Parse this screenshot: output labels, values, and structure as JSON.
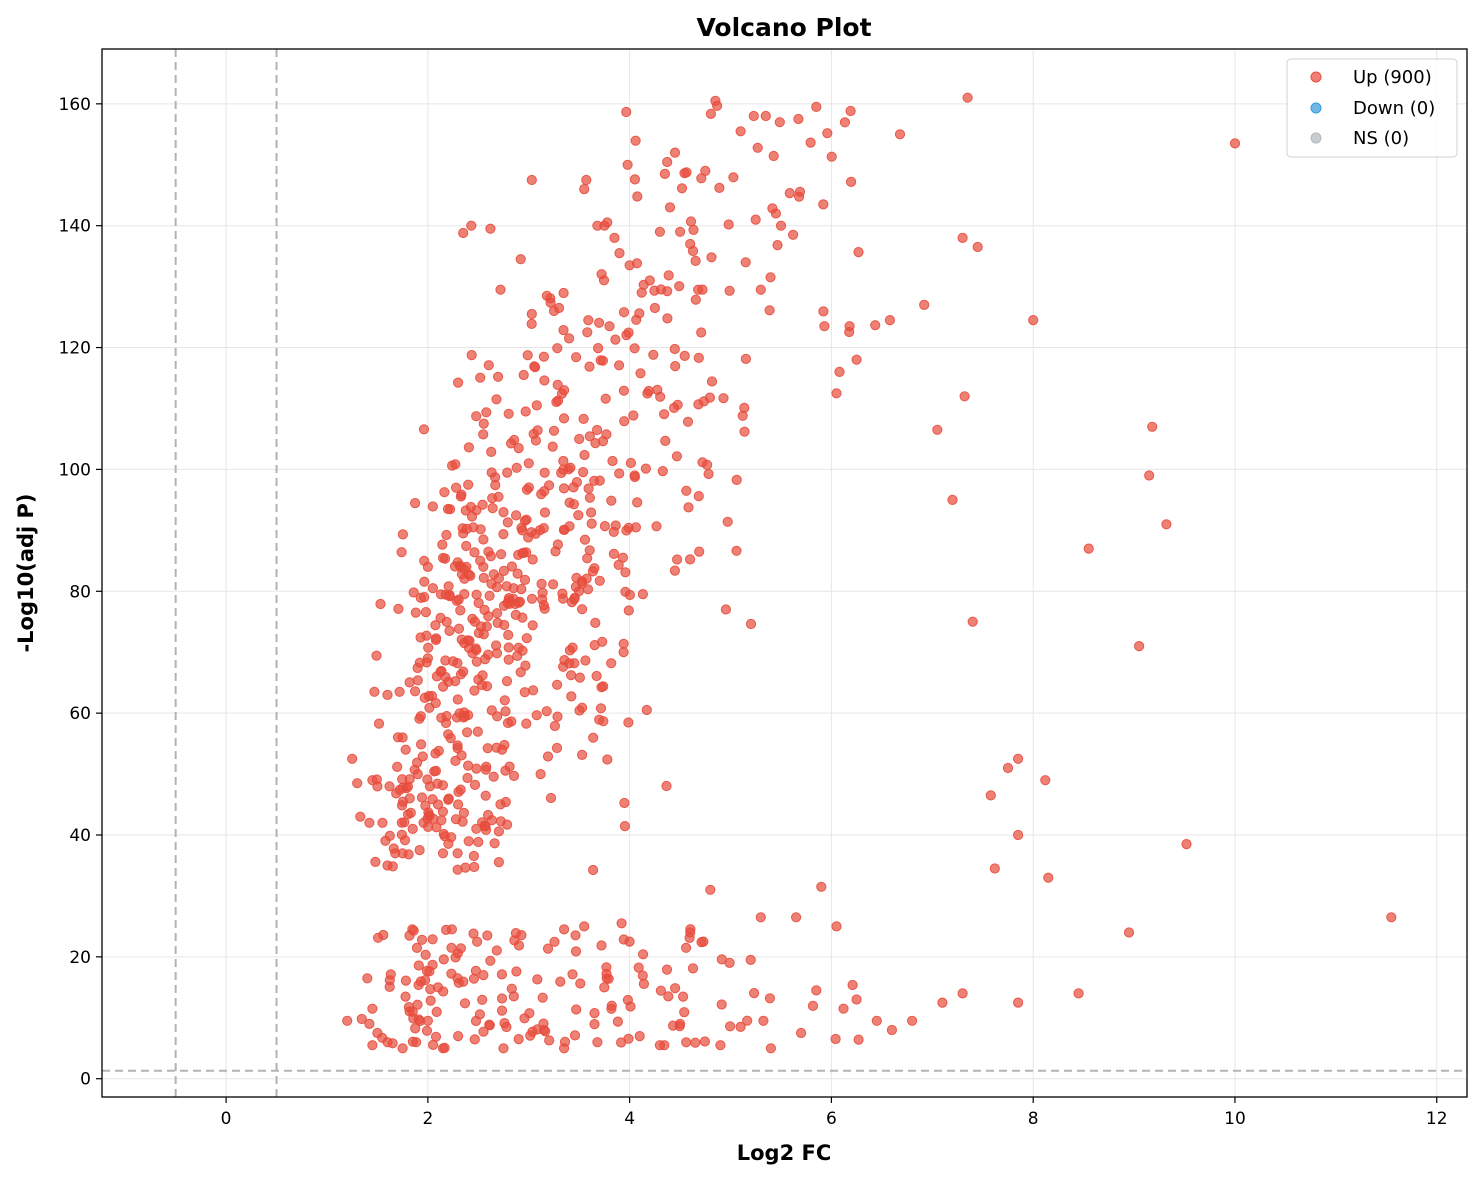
{
  "chart_data": {
    "type": "scatter",
    "title": "Volcano Plot",
    "xlabel": "Log2 FC",
    "ylabel": "-Log10(adj P)",
    "xlim": [
      -1.23,
      12.3
    ],
    "ylim": [
      -3.0,
      169.0
    ],
    "xticks": [
      0,
      2,
      4,
      6,
      8,
      10,
      12
    ],
    "yticks": [
      0,
      20,
      40,
      60,
      80,
      100,
      120,
      140,
      160
    ],
    "grid": true,
    "legend_position": "top-right",
    "thresholds": {
      "fc_lines": [
        -0.5,
        0.5
      ],
      "p_line": 1.3
    },
    "series": [
      {
        "name": "Up (900)",
        "color": "#e74c3c",
        "points": []
      },
      {
        "name": "Down (0)",
        "color": "#3498db",
        "points": []
      },
      {
        "name": "NS (0)",
        "color": "#b0b8bc",
        "points": []
      }
    ],
    "point_count_total": 900,
    "sample_points": [
      [
        1.2,
        9.5
      ],
      [
        1.25,
        52.5
      ],
      [
        1.3,
        48.5
      ],
      [
        1.33,
        43.0
      ],
      [
        1.42,
        42.0
      ],
      [
        1.45,
        49.0
      ],
      [
        1.47,
        63.5
      ],
      [
        1.45,
        5.5
      ],
      [
        1.45,
        11.5
      ],
      [
        1.55,
        42.0
      ],
      [
        1.6,
        35.0
      ],
      [
        1.62,
        48.0
      ],
      [
        1.6,
        63.0
      ],
      [
        1.72,
        63.5
      ],
      [
        1.75,
        37.0
      ],
      [
        1.75,
        56.0
      ],
      [
        1.78,
        54.0
      ],
      [
        1.82,
        46.0
      ],
      [
        1.85,
        41.0
      ],
      [
        1.88,
        76.5
      ],
      [
        1.9,
        50.0
      ],
      [
        1.93,
        59.5
      ],
      [
        1.97,
        62.5
      ],
      [
        2.0,
        69.0
      ],
      [
        2.0,
        84.0
      ],
      [
        2.02,
        48.0
      ],
      [
        2.05,
        80.5
      ],
      [
        2.08,
        72.0
      ],
      [
        2.1,
        45.0
      ],
      [
        2.13,
        79.5
      ],
      [
        2.15,
        37.0
      ],
      [
        2.2,
        93.5
      ],
      [
        2.25,
        68.5
      ],
      [
        2.28,
        97.0
      ],
      [
        2.3,
        45.0
      ],
      [
        2.33,
        84.0
      ],
      [
        2.35,
        89.5
      ],
      [
        2.4,
        97.5
      ],
      [
        2.45,
        90.5
      ],
      [
        2.5,
        65.5
      ],
      [
        2.55,
        88.5
      ],
      [
        2.6,
        86.5
      ],
      [
        2.62,
        139.5
      ],
      [
        2.68,
        111.5
      ],
      [
        2.7,
        95.5
      ],
      [
        2.72,
        129.5
      ],
      [
        2.75,
        93.0
      ],
      [
        2.8,
        78.5
      ],
      [
        2.85,
        80.5
      ],
      [
        2.9,
        103.5
      ],
      [
        2.92,
        134.5
      ],
      [
        2.95,
        115.5
      ],
      [
        3.0,
        101.0
      ],
      [
        3.03,
        147.5
      ],
      [
        3.03,
        125.5
      ],
      [
        3.08,
        110.5
      ],
      [
        3.15,
        118.5
      ],
      [
        3.18,
        128.5
      ],
      [
        3.25,
        126.0
      ],
      [
        3.3,
        126.5
      ],
      [
        3.35,
        113.0
      ],
      [
        3.4,
        121.5
      ],
      [
        3.5,
        105.0
      ],
      [
        3.55,
        146.0
      ],
      [
        3.57,
        147.5
      ],
      [
        3.58,
        122.5
      ],
      [
        3.68,
        140.0
      ],
      [
        3.75,
        140.0
      ],
      [
        3.8,
        123.5
      ],
      [
        3.85,
        138.0
      ],
      [
        3.9,
        135.5
      ],
      [
        3.98,
        150.0
      ],
      [
        4.0,
        133.5
      ],
      [
        4.05,
        99.0
      ],
      [
        4.12,
        129.0
      ],
      [
        4.2,
        131.0
      ],
      [
        4.25,
        126.5
      ],
      [
        4.3,
        139.0
      ],
      [
        4.35,
        148.5
      ],
      [
        4.4,
        143.0
      ],
      [
        4.45,
        152.0
      ],
      [
        4.5,
        139.0
      ],
      [
        4.6,
        137.0
      ],
      [
        4.68,
        129.5
      ],
      [
        4.75,
        149.0
      ],
      [
        4.85,
        160.5
      ],
      [
        5.1,
        155.5
      ],
      [
        5.15,
        134.0
      ],
      [
        5.25,
        141.0
      ],
      [
        5.3,
        129.5
      ],
      [
        5.35,
        158.0
      ],
      [
        5.45,
        142.0
      ],
      [
        5.5,
        140.0
      ],
      [
        5.62,
        138.5
      ],
      [
        5.85,
        159.5
      ],
      [
        5.92,
        143.5
      ],
      [
        5.93,
        123.5
      ],
      [
        6.05,
        112.5
      ],
      [
        6.18,
        123.5
      ],
      [
        6.25,
        118.0
      ],
      [
        6.58,
        124.5
      ],
      [
        6.68,
        155.0
      ],
      [
        6.92,
        127.0
      ],
      [
        7.05,
        106.5
      ],
      [
        7.2,
        95.0
      ],
      [
        7.3,
        138.0
      ],
      [
        7.32,
        112.0
      ],
      [
        7.35,
        161.0
      ],
      [
        7.45,
        136.5
      ],
      [
        7.4,
        75.0
      ],
      [
        8.0,
        124.5
      ],
      [
        8.55,
        87.0
      ],
      [
        9.05,
        71.0
      ],
      [
        9.15,
        99.0
      ],
      [
        9.18,
        107.0
      ],
      [
        9.32,
        91.0
      ],
      [
        9.52,
        38.5
      ],
      [
        10.0,
        153.5
      ],
      [
        11.55,
        26.5
      ],
      [
        8.95,
        24.0
      ],
      [
        8.45,
        14.0
      ],
      [
        7.85,
        12.5
      ],
      [
        8.15,
        33.0
      ],
      [
        8.12,
        49.0
      ],
      [
        7.85,
        52.5
      ],
      [
        7.75,
        51.0
      ],
      [
        7.85,
        40.0
      ],
      [
        7.62,
        34.5
      ],
      [
        7.58,
        46.5
      ],
      [
        7.3,
        14.0
      ],
      [
        7.1,
        12.5
      ],
      [
        6.8,
        9.5
      ],
      [
        6.6,
        8.0
      ],
      [
        6.45,
        9.5
      ],
      [
        6.25,
        13.0
      ],
      [
        6.12,
        11.5
      ],
      [
        6.05,
        25.0
      ],
      [
        5.9,
        31.5
      ],
      [
        5.85,
        14.5
      ],
      [
        5.7,
        7.5
      ],
      [
        5.65,
        26.5
      ],
      [
        5.4,
        5.0
      ],
      [
        5.3,
        26.5
      ],
      [
        5.2,
        19.5
      ],
      [
        5.1,
        8.5
      ],
      [
        4.9,
        5.5
      ],
      [
        4.8,
        31.0
      ],
      [
        4.6,
        24.0
      ],
      [
        4.5,
        9.0
      ],
      [
        4.3,
        5.5
      ],
      [
        4.1,
        7.0
      ],
      [
        4.0,
        22.5
      ],
      [
        3.92,
        25.5
      ],
      [
        3.68,
        6.0
      ],
      [
        3.55,
        25.0
      ],
      [
        3.35,
        5.0
      ],
      [
        3.35,
        24.5
      ],
      [
        3.15,
        8.0
      ],
      [
        2.9,
        6.5
      ],
      [
        2.75,
        5.0
      ],
      [
        2.55,
        17.0
      ],
      [
        2.3,
        7.0
      ],
      [
        2.15,
        5.0
      ],
      [
        2.1,
        15.0
      ],
      [
        2.0,
        9.5
      ],
      [
        1.85,
        11.0
      ],
      [
        1.75,
        5.0
      ],
      [
        1.6,
        6.0
      ],
      [
        1.5,
        7.5
      ],
      [
        1.42,
        9.0
      ]
    ]
  }
}
